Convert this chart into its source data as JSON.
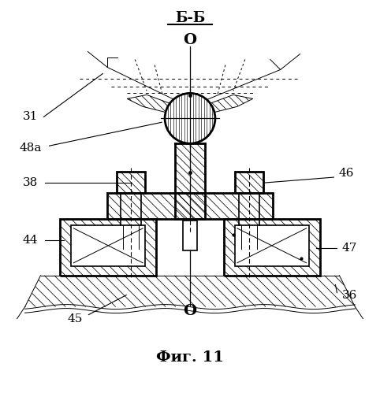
{
  "title_top": "Б-Б",
  "fig_label": "Фиг. 11",
  "axis_label": "О",
  "bg_color": "#ffffff",
  "fig_size": [
    4.82,
    4.99
  ],
  "dpi": 100
}
